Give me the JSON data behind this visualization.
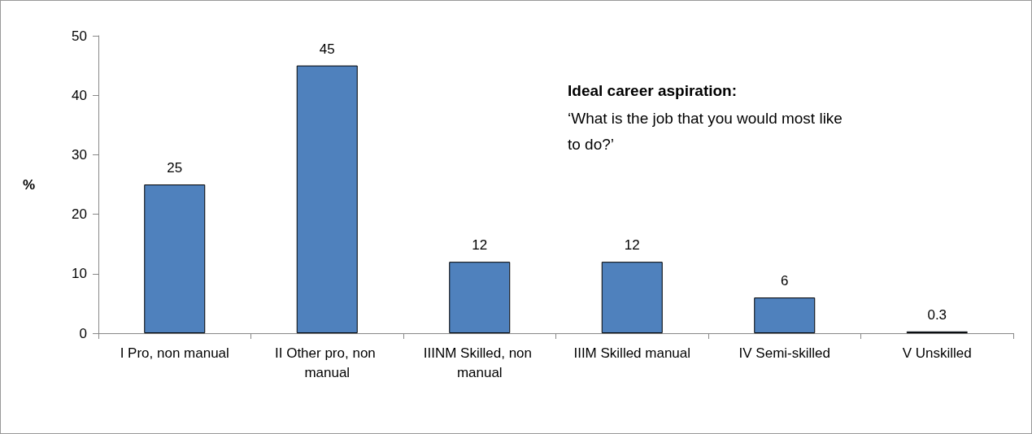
{
  "chart_data": {
    "type": "bar",
    "ylabel": "%",
    "categories": [
      "I Pro, non manual",
      "II Other pro, non manual",
      "IIINM Skilled, non manual",
      "IIIM Skilled manual",
      "IV Semi-skilled",
      "V Unskilled"
    ],
    "values": [
      25,
      45,
      12,
      12,
      6,
      0.3
    ],
    "color": "#4f81bd",
    "ylim": [
      0,
      50
    ],
    "yticks": [
      0,
      10,
      20,
      30,
      40,
      50
    ],
    "grid": false,
    "data_labels": true,
    "annotations": [
      "Ideal career aspiration:",
      "‘What is the job that you would most like to do?’"
    ]
  }
}
